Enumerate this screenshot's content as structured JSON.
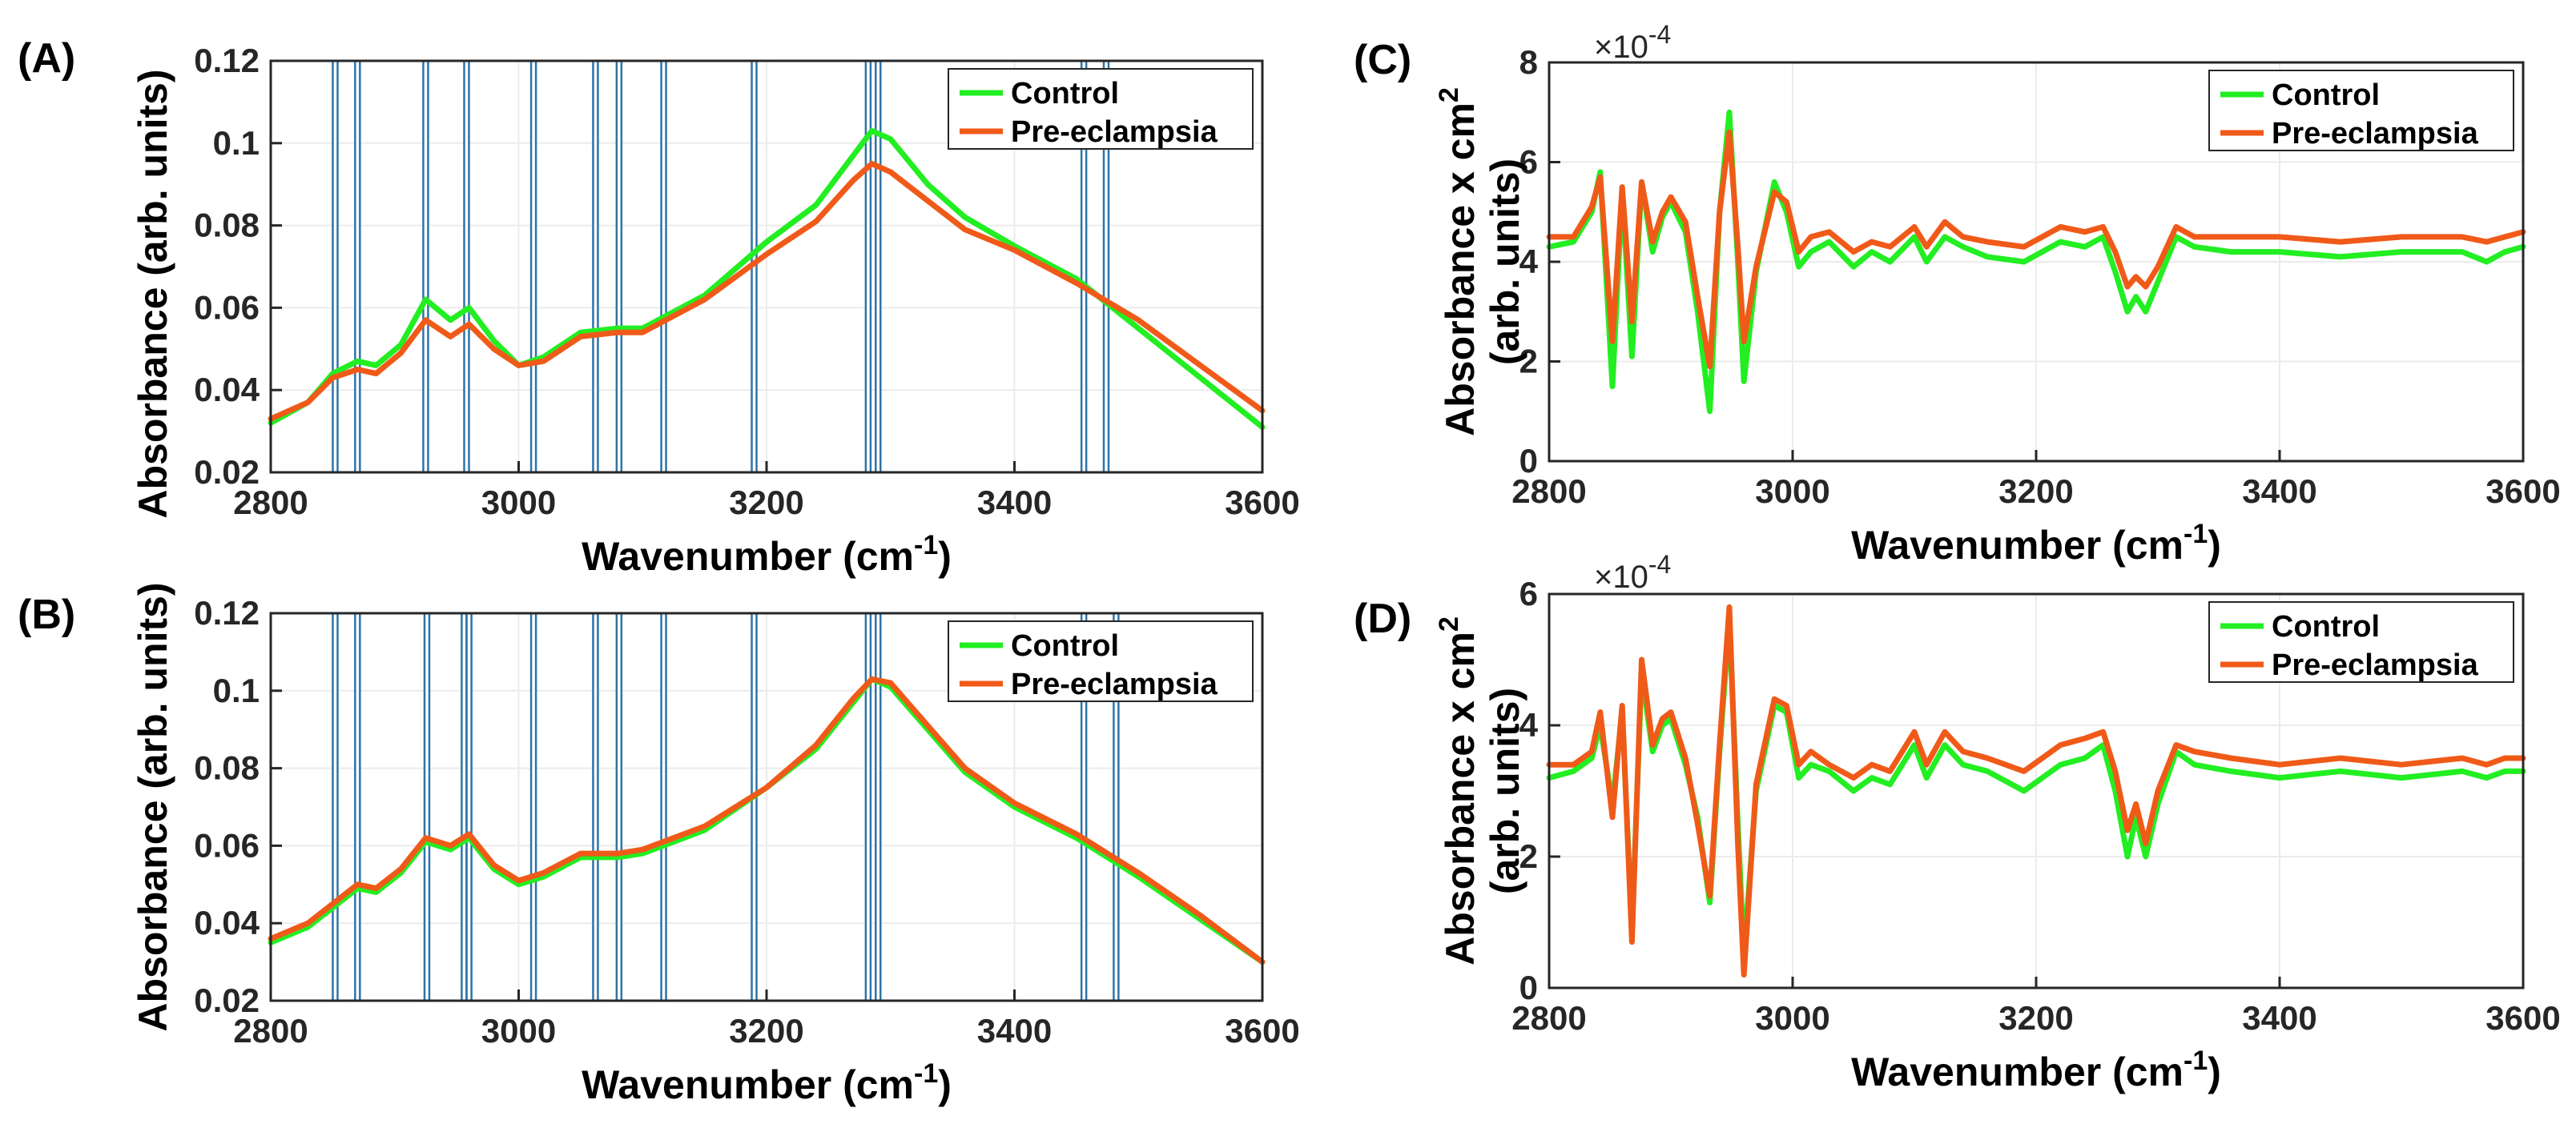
{
  "colors": {
    "control": "#22ee22",
    "preeclampsia": "#f05a19",
    "marker": "#2e74a8",
    "grid": "#ebebeb",
    "axis": "#262626"
  },
  "chart_data": [
    {
      "id": "A",
      "panel_label": "(A)",
      "type": "line",
      "xlabel": "Wavenumber (cm",
      "xlabel_sup": "-1",
      "xlabel_tail": ")",
      "ylabel": "Absorbance (arb. units)",
      "xlim": [
        2800,
        3600
      ],
      "ylim": [
        0.02,
        0.12
      ],
      "x_ticks": [
        2800,
        3000,
        3200,
        3400,
        3600
      ],
      "y_ticks": [
        0.02,
        0.04,
        0.06,
        0.08,
        0.1,
        0.12
      ],
      "y_tick_labels": [
        "0.02",
        "0.04",
        "0.06",
        "0.08",
        "0.1",
        "0.12"
      ],
      "grid": true,
      "legend": "top-right",
      "vertical_markers": [
        2852,
        2870,
        2925,
        2958,
        3012,
        3062,
        3081,
        3117,
        3190,
        3282,
        3290,
        3456,
        3474
      ],
      "series": [
        {
          "name": "Control",
          "key": "control",
          "x": [
            2800,
            2830,
            2850,
            2870,
            2885,
            2905,
            2925,
            2945,
            2960,
            2980,
            3000,
            3020,
            3050,
            3080,
            3100,
            3150,
            3200,
            3240,
            3270,
            3285,
            3300,
            3330,
            3360,
            3400,
            3450,
            3500,
            3550,
            3600
          ],
          "y": [
            0.032,
            0.037,
            0.044,
            0.047,
            0.046,
            0.051,
            0.062,
            0.057,
            0.06,
            0.052,
            0.046,
            0.048,
            0.054,
            0.055,
            0.055,
            0.063,
            0.076,
            0.085,
            0.097,
            0.103,
            0.101,
            0.09,
            0.082,
            0.075,
            0.067,
            0.055,
            0.043,
            0.031
          ]
        },
        {
          "name": "Pre-eclampsia",
          "key": "preeclampsia",
          "x": [
            2800,
            2830,
            2850,
            2870,
            2885,
            2905,
            2925,
            2945,
            2960,
            2980,
            3000,
            3020,
            3050,
            3080,
            3100,
            3150,
            3200,
            3240,
            3270,
            3285,
            3300,
            3330,
            3360,
            3400,
            3450,
            3500,
            3550,
            3600
          ],
          "y": [
            0.033,
            0.037,
            0.043,
            0.045,
            0.044,
            0.049,
            0.057,
            0.053,
            0.056,
            0.05,
            0.046,
            0.047,
            0.053,
            0.054,
            0.054,
            0.062,
            0.073,
            0.081,
            0.091,
            0.095,
            0.093,
            0.086,
            0.079,
            0.074,
            0.066,
            0.057,
            0.046,
            0.035
          ]
        }
      ]
    },
    {
      "id": "B",
      "panel_label": "(B)",
      "type": "line",
      "xlabel": "Wavenumber (cm",
      "xlabel_sup": "-1",
      "xlabel_tail": ")",
      "ylabel": "Absorbance (arb. units)",
      "xlim": [
        2800,
        3600
      ],
      "ylim": [
        0.02,
        0.12
      ],
      "x_ticks": [
        2800,
        3000,
        3200,
        3400,
        3600
      ],
      "y_ticks": [
        0.02,
        0.04,
        0.06,
        0.08,
        0.1,
        0.12
      ],
      "y_tick_labels": [
        "0.02",
        "0.04",
        "0.06",
        "0.08",
        "0.1",
        "0.12"
      ],
      "grid": true,
      "legend": "top-right",
      "vertical_markers": [
        2852,
        2870,
        2926,
        2956,
        2960,
        3012,
        3062,
        3081,
        3117,
        3190,
        3282,
        3290,
        3456,
        3482
      ],
      "series": [
        {
          "name": "Control",
          "key": "control",
          "x": [
            2800,
            2830,
            2850,
            2870,
            2885,
            2905,
            2925,
            2945,
            2960,
            2980,
            3000,
            3020,
            3050,
            3080,
            3100,
            3150,
            3200,
            3240,
            3270,
            3285,
            3300,
            3330,
            3360,
            3400,
            3450,
            3500,
            3550,
            3600
          ],
          "y": [
            0.035,
            0.039,
            0.044,
            0.049,
            0.048,
            0.053,
            0.061,
            0.059,
            0.062,
            0.054,
            0.05,
            0.052,
            0.057,
            0.057,
            0.058,
            0.064,
            0.075,
            0.085,
            0.097,
            0.103,
            0.101,
            0.09,
            0.079,
            0.07,
            0.062,
            0.052,
            0.041,
            0.03
          ]
        },
        {
          "name": "Pre-eclampsia",
          "key": "preeclampsia",
          "x": [
            2800,
            2830,
            2850,
            2870,
            2885,
            2905,
            2925,
            2945,
            2960,
            2980,
            3000,
            3020,
            3050,
            3080,
            3100,
            3150,
            3200,
            3240,
            3270,
            3285,
            3300,
            3330,
            3360,
            3400,
            3450,
            3500,
            3550,
            3600
          ],
          "y": [
            0.036,
            0.04,
            0.045,
            0.05,
            0.049,
            0.054,
            0.062,
            0.06,
            0.063,
            0.055,
            0.051,
            0.053,
            0.058,
            0.058,
            0.059,
            0.065,
            0.075,
            0.086,
            0.098,
            0.103,
            0.102,
            0.091,
            0.08,
            0.071,
            0.063,
            0.053,
            0.042,
            0.03
          ]
        }
      ]
    },
    {
      "id": "C",
      "panel_label": "(C)",
      "type": "line",
      "xlabel": "Wavenumber (cm",
      "xlabel_sup": "-1",
      "xlabel_tail": ")",
      "ylabel_line1": "Absorbance x cm",
      "ylabel_line1_sup": "2",
      "ylabel_line2": "(arb. units)",
      "exponent_base": "×10",
      "exponent_power": "-4",
      "xlim": [
        2800,
        3600
      ],
      "ylim": [
        0,
        8
      ],
      "x_ticks": [
        2800,
        3000,
        3200,
        3400,
        3600
      ],
      "y_ticks": [
        0,
        2,
        4,
        6,
        8
      ],
      "y_tick_labels": [
        "0",
        "2",
        "4",
        "6",
        "8"
      ],
      "grid": true,
      "legend": "top-right",
      "series": [
        {
          "name": "Control",
          "key": "control",
          "x": [
            2800,
            2820,
            2835,
            2842,
            2852,
            2860,
            2868,
            2876,
            2885,
            2893,
            2900,
            2912,
            2922,
            2932,
            2940,
            2948,
            2955,
            2960,
            2970,
            2985,
            2995,
            3005,
            3015,
            3030,
            3050,
            3065,
            3080,
            3100,
            3110,
            3125,
            3140,
            3160,
            3190,
            3220,
            3240,
            3255,
            3265,
            3275,
            3282,
            3290,
            3300,
            3315,
            3330,
            3360,
            3400,
            3450,
            3500,
            3550,
            3570,
            3585,
            3600
          ],
          "y": [
            4.3,
            4.4,
            5.0,
            5.8,
            1.5,
            5.4,
            2.1,
            5.6,
            4.2,
            4.9,
            5.2,
            4.6,
            3.0,
            1.0,
            5.0,
            7.0,
            4.0,
            1.6,
            3.8,
            5.6,
            5.0,
            3.9,
            4.2,
            4.4,
            3.9,
            4.2,
            4.0,
            4.5,
            4.0,
            4.5,
            4.3,
            4.1,
            4.0,
            4.4,
            4.3,
            4.5,
            3.8,
            3.0,
            3.3,
            3.0,
            3.6,
            4.5,
            4.3,
            4.2,
            4.2,
            4.1,
            4.2,
            4.2,
            4.0,
            4.2,
            4.3
          ]
        },
        {
          "name": "Pre-eclampsia",
          "key": "preeclampsia",
          "x": [
            2800,
            2820,
            2835,
            2842,
            2852,
            2860,
            2868,
            2876,
            2885,
            2893,
            2900,
            2912,
            2922,
            2932,
            2940,
            2948,
            2955,
            2960,
            2970,
            2985,
            2995,
            3005,
            3015,
            3030,
            3050,
            3065,
            3080,
            3100,
            3110,
            3125,
            3140,
            3160,
            3190,
            3220,
            3240,
            3255,
            3265,
            3275,
            3282,
            3290,
            3300,
            3315,
            3330,
            3360,
            3400,
            3450,
            3500,
            3550,
            3570,
            3585,
            3600
          ],
          "y": [
            4.5,
            4.5,
            5.1,
            5.7,
            2.4,
            5.5,
            2.8,
            5.6,
            4.4,
            5.0,
            5.3,
            4.8,
            3.3,
            1.9,
            5.0,
            6.6,
            4.3,
            2.4,
            3.9,
            5.4,
            5.2,
            4.2,
            4.5,
            4.6,
            4.2,
            4.4,
            4.3,
            4.7,
            4.3,
            4.8,
            4.5,
            4.4,
            4.3,
            4.7,
            4.6,
            4.7,
            4.2,
            3.5,
            3.7,
            3.5,
            3.9,
            4.7,
            4.5,
            4.5,
            4.5,
            4.4,
            4.5,
            4.5,
            4.4,
            4.5,
            4.6
          ]
        }
      ]
    },
    {
      "id": "D",
      "panel_label": "(D)",
      "type": "line",
      "xlabel": "Wavenumber (cm",
      "xlabel_sup": "-1",
      "xlabel_tail": ")",
      "ylabel_line1": "Absorbance x cm",
      "ylabel_line1_sup": "2",
      "ylabel_line2": "(arb. units)",
      "exponent_base": "×10",
      "exponent_power": "-4",
      "xlim": [
        2800,
        3600
      ],
      "ylim": [
        0,
        6
      ],
      "x_ticks": [
        2800,
        3000,
        3200,
        3400,
        3600
      ],
      "y_ticks": [
        0,
        2,
        4,
        6
      ],
      "y_tick_labels": [
        "0",
        "2",
        "4",
        "6"
      ],
      "grid": true,
      "legend": "top-right",
      "series": [
        {
          "name": "Control",
          "key": "control",
          "x": [
            2800,
            2820,
            2835,
            2842,
            2852,
            2860,
            2868,
            2876,
            2885,
            2893,
            2900,
            2912,
            2922,
            2932,
            2940,
            2948,
            2955,
            2960,
            2970,
            2985,
            2995,
            3005,
            3015,
            3030,
            3050,
            3065,
            3080,
            3100,
            3110,
            3125,
            3140,
            3160,
            3190,
            3220,
            3240,
            3255,
            3265,
            3275,
            3282,
            3290,
            3300,
            3315,
            3330,
            3360,
            3400,
            3450,
            3500,
            3550,
            3570,
            3585,
            3600
          ],
          "y": [
            3.2,
            3.3,
            3.5,
            4.0,
            2.8,
            4.2,
            0.9,
            4.8,
            3.6,
            4.0,
            4.1,
            3.4,
            2.6,
            1.3,
            3.6,
            5.6,
            2.5,
            0.5,
            3.0,
            4.3,
            4.2,
            3.2,
            3.4,
            3.3,
            3.0,
            3.2,
            3.1,
            3.7,
            3.2,
            3.7,
            3.4,
            3.3,
            3.0,
            3.4,
            3.5,
            3.7,
            3.0,
            2.0,
            2.6,
            2.0,
            2.8,
            3.6,
            3.4,
            3.3,
            3.2,
            3.3,
            3.2,
            3.3,
            3.2,
            3.3,
            3.3
          ]
        },
        {
          "name": "Pre-eclampsia",
          "key": "preeclampsia",
          "x": [
            2800,
            2820,
            2835,
            2842,
            2852,
            2860,
            2868,
            2876,
            2885,
            2893,
            2900,
            2912,
            2922,
            2932,
            2940,
            2948,
            2955,
            2960,
            2970,
            2985,
            2995,
            3005,
            3015,
            3030,
            3050,
            3065,
            3080,
            3100,
            3110,
            3125,
            3140,
            3160,
            3190,
            3220,
            3240,
            3255,
            3265,
            3275,
            3282,
            3290,
            3300,
            3315,
            3330,
            3360,
            3400,
            3450,
            3500,
            3550,
            3570,
            3585,
            3600
          ],
          "y": [
            3.4,
            3.4,
            3.6,
            4.2,
            2.6,
            4.3,
            0.7,
            5.0,
            3.7,
            4.1,
            4.2,
            3.5,
            2.5,
            1.4,
            3.7,
            5.8,
            2.2,
            0.2,
            3.1,
            4.4,
            4.3,
            3.4,
            3.6,
            3.4,
            3.2,
            3.4,
            3.3,
            3.9,
            3.4,
            3.9,
            3.6,
            3.5,
            3.3,
            3.7,
            3.8,
            3.9,
            3.3,
            2.4,
            2.8,
            2.2,
            3.0,
            3.7,
            3.6,
            3.5,
            3.4,
            3.5,
            3.4,
            3.5,
            3.4,
            3.5,
            3.5
          ]
        }
      ]
    }
  ]
}
